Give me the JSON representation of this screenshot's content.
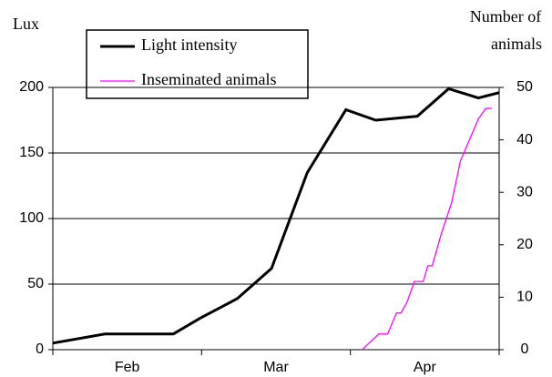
{
  "chart_data": {
    "type": "line",
    "ylabel": "Lux",
    "y2label": [
      "Number of",
      "animals"
    ],
    "xlim": [
      0,
      3
    ],
    "xticks": [
      {
        "value": 0.5,
        "label": "Feb"
      },
      {
        "value": 1.5,
        "label": "Mar"
      },
      {
        "value": 2.5,
        "label": "Apr"
      }
    ],
    "ylim": [
      0,
      200
    ],
    "yticks": [
      0,
      50,
      100,
      150,
      200
    ],
    "y2lim": [
      0,
      50
    ],
    "y2ticks": [
      0,
      10,
      20,
      30,
      40,
      50
    ],
    "grid": true,
    "legend": "top-left",
    "series": [
      {
        "name": "Light intensity",
        "color": "#000000",
        "x": [
          0,
          0.35,
          0.81,
          0.99,
          1.24,
          1.47,
          1.71,
          1.97,
          2.17,
          2.45,
          2.66,
          2.86,
          3.0
        ],
        "values": [
          5,
          12,
          12,
          24,
          39,
          62,
          135,
          183,
          175,
          178,
          199,
          192,
          196
        ]
      },
      {
        "name": "Inseminated animals",
        "color": "#ff00ff",
        "axis": "y2",
        "x": [
          2.08,
          2.19,
          2.25,
          2.31,
          2.34,
          2.38,
          2.43,
          2.49,
          2.52,
          2.55,
          2.61,
          2.68,
          2.74,
          2.8,
          2.86,
          2.91,
          2.95
        ],
        "values": [
          0,
          3,
          3,
          7,
          7,
          9,
          13,
          13,
          16,
          16,
          22,
          28,
          36,
          40,
          44,
          46,
          46
        ]
      }
    ]
  }
}
